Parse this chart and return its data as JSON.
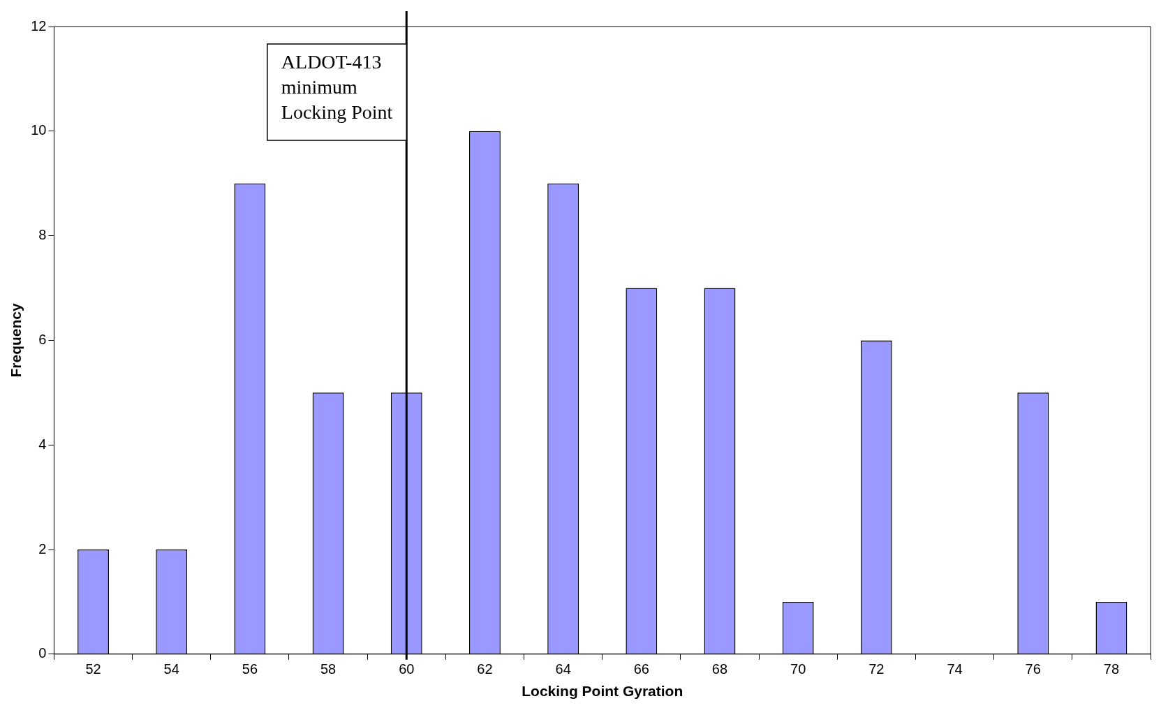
{
  "chart_data": {
    "type": "bar",
    "xlabel": "Locking Point Gyration",
    "ylabel": "Frequency",
    "categories": [
      "52",
      "54",
      "56",
      "58",
      "60",
      "62",
      "64",
      "66",
      "68",
      "70",
      "72",
      "74",
      "76",
      "78"
    ],
    "values": [
      2,
      2,
      9,
      5,
      5,
      10,
      9,
      7,
      7,
      1,
      6,
      0,
      5,
      1
    ],
    "color": "#9999ff",
    "ylim": [
      0,
      12
    ],
    "yticks": [
      0,
      2,
      4,
      6,
      8,
      10,
      12
    ],
    "grid": false,
    "legend": false,
    "ref_lines": [
      {
        "axis": "x",
        "value": "60",
        "label": "ALDOT-413 minimum Locking Point",
        "color": "#000000"
      }
    ]
  }
}
